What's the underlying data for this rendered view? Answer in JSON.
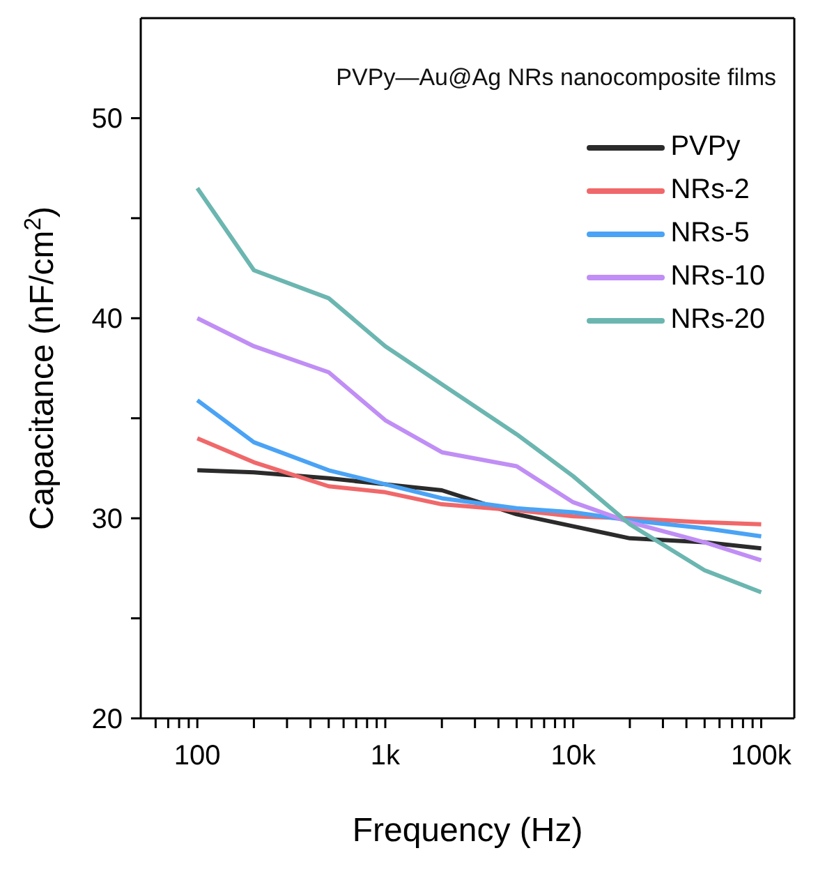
{
  "chart_data": {
    "type": "line",
    "title": "PVPy—Au@Ag NRs nanocomposite films",
    "xlabel": "Frequency (Hz)",
    "ylabel": "Capacitance (nF/cm$^{2}$)",
    "x": [
      100,
      200,
      500,
      1000,
      2000,
      5000,
      10000,
      20000,
      50000,
      100000
    ],
    "series": [
      {
        "name": "PVPy",
        "color": "#2b2b2b",
        "values": [
          32.4,
          32.3,
          32.0,
          31.7,
          31.4,
          30.2,
          29.6,
          29.0,
          28.8,
          28.5
        ]
      },
      {
        "name": "NRs-2",
        "color": "#f0686a",
        "values": [
          34.0,
          32.8,
          31.6,
          31.3,
          30.7,
          30.4,
          30.1,
          30.0,
          29.8,
          29.7
        ]
      },
      {
        "name": "NRs-5",
        "color": "#4aa3f5",
        "values": [
          35.9,
          33.8,
          32.4,
          31.7,
          31.0,
          30.5,
          30.3,
          29.9,
          29.5,
          29.1
        ]
      },
      {
        "name": "NRs-10",
        "color": "#c08ef5",
        "values": [
          40.0,
          38.6,
          37.3,
          34.9,
          33.3,
          32.6,
          30.8,
          29.8,
          28.8,
          27.9
        ]
      },
      {
        "name": "NRs-20",
        "color": "#6bb6b0",
        "values": [
          46.5,
          42.4,
          41.0,
          38.6,
          36.7,
          34.2,
          32.1,
          29.7,
          27.4,
          26.3
        ]
      }
    ],
    "log": "x",
    "xlim": [
      50,
      150000
    ],
    "xticks": [
      {
        "value": 60,
        "label": null
      },
      {
        "value": 70,
        "label": null
      },
      {
        "value": 80,
        "label": null
      },
      {
        "value": 90,
        "label": null
      },
      {
        "value": 100,
        "label": "100"
      },
      {
        "value": 200,
        "label": null
      },
      {
        "value": 300,
        "label": null
      },
      {
        "value": 400,
        "label": null
      },
      {
        "value": 500,
        "label": null
      },
      {
        "value": 600,
        "label": null
      },
      {
        "value": 700,
        "label": null
      },
      {
        "value": 800,
        "label": null
      },
      {
        "value": 900,
        "label": null
      },
      {
        "value": 1000,
        "label": "1k"
      },
      {
        "value": 2000,
        "label": null
      },
      {
        "value": 3000,
        "label": null
      },
      {
        "value": 4000,
        "label": null
      },
      {
        "value": 5000,
        "label": null
      },
      {
        "value": 6000,
        "label": null
      },
      {
        "value": 7000,
        "label": null
      },
      {
        "value": 8000,
        "label": null
      },
      {
        "value": 9000,
        "label": null
      },
      {
        "value": 10000,
        "label": "10k"
      },
      {
        "value": 20000,
        "label": null
      },
      {
        "value": 30000,
        "label": null
      },
      {
        "value": 40000,
        "label": null
      },
      {
        "value": 50000,
        "label": null
      },
      {
        "value": 60000,
        "label": null
      },
      {
        "value": 70000,
        "label": null
      },
      {
        "value": 80000,
        "label": null
      },
      {
        "value": 90000,
        "label": null
      },
      {
        "value": 100000,
        "label": "100k"
      }
    ],
    "ylim": [
      20,
      55
    ],
    "yticks": [
      20,
      {
        "value": 25,
        "label": null
      },
      30,
      {
        "value": 35,
        "label": null
      },
      40,
      {
        "value": 45,
        "label": null
      },
      50
    ],
    "grid": false,
    "legend": "top right",
    "marker": "none",
    "line_style": "solid"
  }
}
